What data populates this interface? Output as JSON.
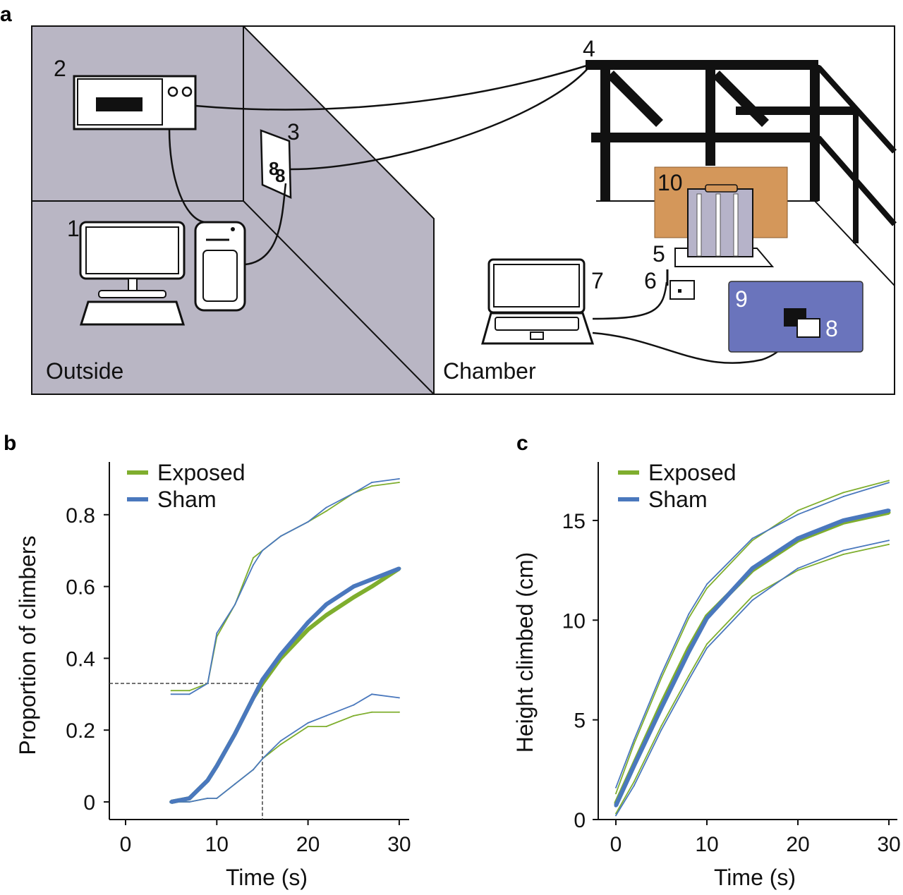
{
  "panels": {
    "a": "a",
    "b": "b",
    "c": "c"
  },
  "diagram": {
    "region_outside": "Outside",
    "region_chamber": "Chamber",
    "labels": [
      "1",
      "2",
      "3",
      "4",
      "5",
      "6",
      "7",
      "8",
      "9",
      "10"
    ],
    "colors": {
      "outside_wall": "#b9b6c4",
      "shield_10": "#d4975a",
      "mat_9": "#6a74bc"
    }
  },
  "chart_data": [
    {
      "type": "line",
      "panel": "b",
      "xlabel": "Time (s)",
      "ylabel": "Proportion of climbers",
      "xlim": [
        -1.8,
        31
      ],
      "ylim": [
        -0.05,
        0.95
      ],
      "xticks": [
        "0",
        "10",
        "20",
        "30"
      ],
      "xtick_values": [
        0,
        10,
        20,
        30
      ],
      "yticks": [
        "0",
        "0.2",
        "0.4",
        "0.6",
        "0.8"
      ],
      "ytick_values": [
        0,
        0.2,
        0.4,
        0.6,
        0.8
      ],
      "legend": [
        "Exposed",
        "Sham"
      ],
      "legend_placement": "top-left",
      "colors": {
        "Exposed": "#7fae2e",
        "Sham": "#4a78bd"
      },
      "reference": {
        "x": 15,
        "y": 0.33
      },
      "x": [
        5,
        7,
        9,
        10,
        12,
        14,
        15,
        17,
        20,
        22,
        25,
        27,
        30
      ],
      "series": [
        {
          "name": "Exposed",
          "kind": "mean",
          "values": [
            0,
            0.01,
            0.06,
            0.1,
            0.19,
            0.29,
            0.33,
            0.4,
            0.48,
            0.52,
            0.57,
            0.6,
            0.65
          ]
        },
        {
          "name": "Sham",
          "kind": "mean",
          "values": [
            0,
            0.01,
            0.06,
            0.1,
            0.19,
            0.29,
            0.34,
            0.41,
            0.5,
            0.55,
            0.6,
            0.62,
            0.65
          ]
        },
        {
          "name": "Exposed",
          "kind": "upper",
          "values": [
            0.31,
            0.31,
            0.33,
            0.46,
            0.55,
            0.68,
            0.7,
            0.74,
            0.78,
            0.81,
            0.86,
            0.88,
            0.89
          ]
        },
        {
          "name": "Sham",
          "kind": "upper",
          "values": [
            0.3,
            0.3,
            0.33,
            0.47,
            0.55,
            0.66,
            0.7,
            0.74,
            0.78,
            0.82,
            0.86,
            0.89,
            0.9
          ]
        },
        {
          "name": "Exposed",
          "kind": "lower",
          "values": [
            0,
            0,
            0.01,
            0.01,
            0.05,
            0.09,
            0.12,
            0.16,
            0.21,
            0.21,
            0.24,
            0.25,
            0.25
          ]
        },
        {
          "name": "Sham",
          "kind": "lower",
          "values": [
            0,
            0,
            0.01,
            0.01,
            0.05,
            0.09,
            0.12,
            0.17,
            0.22,
            0.24,
            0.27,
            0.3,
            0.29
          ]
        }
      ]
    },
    {
      "type": "line",
      "panel": "c",
      "xlabel": "Time (s)",
      "ylabel": "Height climbed (cm)",
      "xlim": [
        -2,
        31
      ],
      "ylim": [
        0,
        17.9
      ],
      "xticks": [
        "0",
        "10",
        "20",
        "30"
      ],
      "xtick_values": [
        0,
        10,
        20,
        30
      ],
      "yticks": [
        "0",
        "5",
        "10",
        "15"
      ],
      "ytick_values": [
        0,
        5,
        10,
        15
      ],
      "legend": [
        "Exposed",
        "Sham"
      ],
      "legend_placement": "top-left",
      "colors": {
        "Exposed": "#7fae2e",
        "Sham": "#4a78bd"
      },
      "x": [
        0,
        2,
        5,
        8,
        10,
        15,
        20,
        25,
        30
      ],
      "series": [
        {
          "name": "Exposed",
          "kind": "mean",
          "values": [
            0.8,
            2.8,
            5.8,
            8.6,
            10.2,
            12.5,
            14.0,
            14.9,
            15.4
          ]
        },
        {
          "name": "Sham",
          "kind": "mean",
          "values": [
            0.7,
            2.7,
            5.6,
            8.4,
            10.1,
            12.6,
            14.1,
            15.0,
            15.5
          ]
        },
        {
          "name": "Exposed",
          "kind": "upper",
          "values": [
            1.3,
            3.8,
            7.1,
            10.1,
            11.6,
            14.0,
            15.5,
            16.4,
            17.0
          ]
        },
        {
          "name": "Sham",
          "kind": "upper",
          "values": [
            1.6,
            4.0,
            7.3,
            10.3,
            11.8,
            14.1,
            15.3,
            16.2,
            16.9
          ]
        },
        {
          "name": "Exposed",
          "kind": "lower",
          "values": [
            0.3,
            1.9,
            4.7,
            7.2,
            8.8,
            11.2,
            12.5,
            13.3,
            13.8
          ]
        },
        {
          "name": "Sham",
          "kind": "lower",
          "values": [
            0.2,
            1.7,
            4.5,
            7.0,
            8.6,
            11.0,
            12.6,
            13.5,
            14.0
          ]
        }
      ]
    }
  ]
}
